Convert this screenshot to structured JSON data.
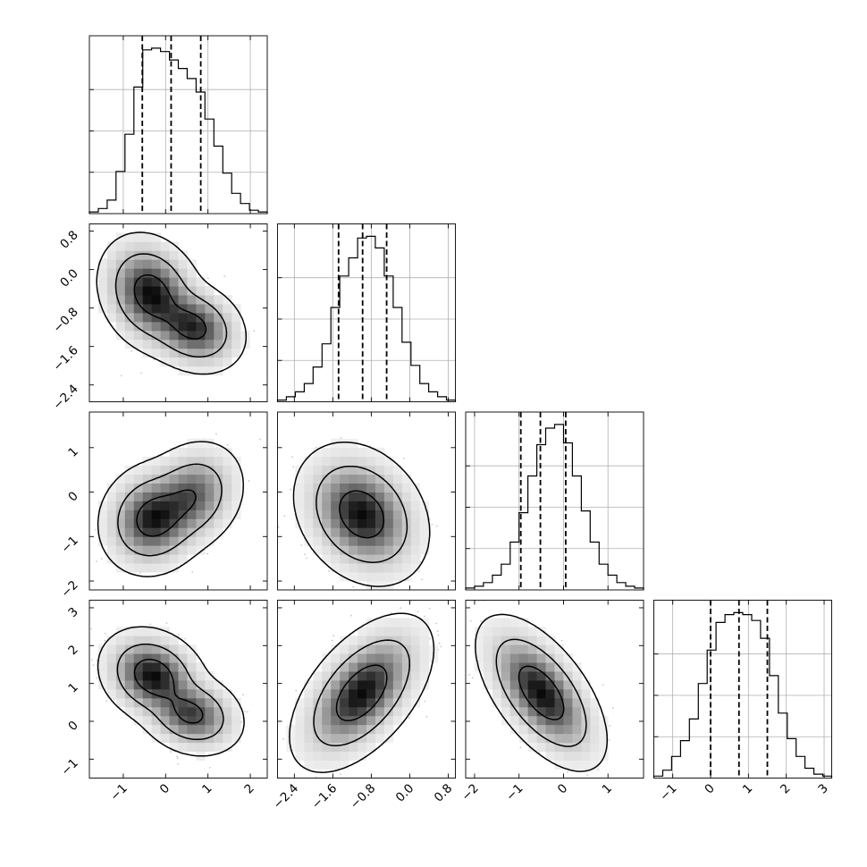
{
  "chart_data": {
    "type": "corner",
    "title": "",
    "grid": true,
    "n_params": 4,
    "params": [
      {
        "median": 0.13,
        "q16": -0.55,
        "q84": 0.83,
        "range": [
          -1.8,
          2.4
        ],
        "ticks": [
          -1,
          0,
          1,
          2
        ],
        "tick_labels": [
          "−1",
          "0",
          "1",
          "2"
        ]
      },
      {
        "median": -0.98,
        "q16": -1.48,
        "q84": -0.48,
        "range": [
          -2.75,
          0.95
        ],
        "ticks": [
          -2.4,
          -1.6,
          -0.8,
          0.0,
          0.8
        ],
        "tick_labels": [
          "−2.4",
          "−1.6",
          "−0.8",
          "0.0",
          "0.8"
        ]
      },
      {
        "median": -0.52,
        "q16": -0.96,
        "q84": 0.05,
        "range": [
          -2.2,
          1.8
        ],
        "ticks": [
          -2,
          -1,
          0,
          1
        ],
        "tick_labels": [
          "−2",
          "−1",
          "0",
          "1"
        ]
      },
      {
        "median": 0.75,
        "q16": 0.0,
        "q84": 1.5,
        "range": [
          -1.5,
          3.2
        ],
        "ticks": [
          -1,
          0,
          1,
          2,
          3
        ],
        "tick_labels": [
          "−1",
          "0",
          "1",
          "2",
          "3"
        ]
      }
    ],
    "marginals": [
      {
        "counts": [
          1,
          3,
          8,
          25,
          47,
          75,
          97,
          98,
          96,
          91,
          86,
          80,
          72,
          56,
          40,
          24,
          12,
          6,
          2,
          1
        ]
      },
      {
        "counts": [
          1,
          3,
          6,
          11,
          21,
          35,
          57,
          76,
          87,
          99,
          100,
          93,
          76,
          57,
          36,
          22,
          11,
          6,
          3,
          1
        ]
      },
      {
        "counts": [
          1,
          2,
          4,
          8,
          14,
          26,
          42,
          62,
          79,
          88,
          90,
          80,
          62,
          43,
          26,
          14,
          8,
          4,
          2,
          1
        ]
      },
      {
        "counts": [
          1,
          4,
          11,
          19,
          30,
          48,
          65,
          79,
          83,
          84,
          83,
          80,
          71,
          52,
          33,
          20,
          11,
          5,
          2,
          1
        ]
      }
    ],
    "pairs": [
      {
        "x": 0,
        "y": 1,
        "components": [
          {
            "w": 0.6,
            "mx": -0.35,
            "my": -0.5,
            "sx": 0.45,
            "sy": 0.45,
            "rho": -0.2
          },
          {
            "w": 0.4,
            "mx": 0.65,
            "my": -1.2,
            "sx": 0.45,
            "sy": 0.35,
            "rho": -0.2
          }
        ]
      },
      {
        "x": 0,
        "y": 2,
        "components": [
          {
            "w": 0.6,
            "mx": -0.3,
            "my": -0.6,
            "sx": 0.45,
            "sy": 0.45,
            "rho": 0.1
          },
          {
            "w": 0.4,
            "mx": 0.6,
            "my": -0.1,
            "sx": 0.45,
            "sy": 0.45,
            "rho": 0.2
          }
        ]
      },
      {
        "x": 1,
        "y": 2,
        "components": [
          {
            "w": 1.0,
            "mx": -1.0,
            "my": -0.5,
            "sx": 0.48,
            "sy": 0.55,
            "rho": -0.25
          }
        ]
      },
      {
        "x": 0,
        "y": 3,
        "components": [
          {
            "w": 0.6,
            "mx": -0.3,
            "my": 1.2,
            "sx": 0.45,
            "sy": 0.45,
            "rho": -0.2
          },
          {
            "w": 0.4,
            "mx": 0.6,
            "my": 0.2,
            "sx": 0.45,
            "sy": 0.4,
            "rho": -0.2
          }
        ]
      },
      {
        "x": 1,
        "y": 3,
        "components": [
          {
            "w": 1.0,
            "mx": -1.0,
            "my": 0.75,
            "sx": 0.5,
            "sy": 0.7,
            "rho": 0.55
          }
        ]
      },
      {
        "x": 2,
        "y": 3,
        "components": [
          {
            "w": 1.0,
            "mx": -0.5,
            "my": 0.75,
            "sx": 0.5,
            "sy": 0.7,
            "rho": -0.6
          }
        ]
      }
    ],
    "contour_levels": [
      0.393,
      0.865,
      0.989
    ]
  }
}
